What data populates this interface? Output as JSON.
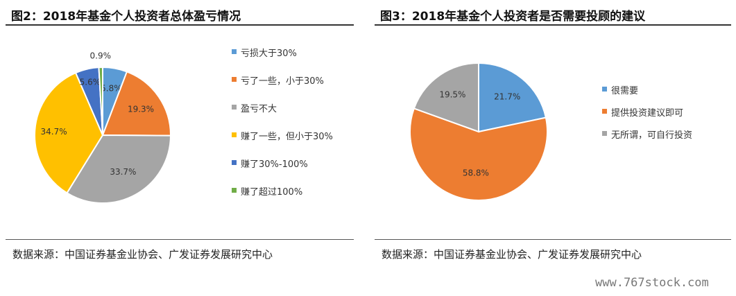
{
  "charts": [
    {
      "title": "图2：2018年基金个人投资者总体盈亏情况",
      "source": "数据来源：中国证券基金业协会、广发证券发展研究中心"
    },
    {
      "title": "图3：2018年基金个人投资者是否需要投顾的建议",
      "source": "数据来源：中国证券基金业协会、广发证券发展研究中心"
    }
  ],
  "chart_data": [
    {
      "type": "pie",
      "title": "图2：2018年基金个人投资者总体盈亏情况",
      "legend_position": "right",
      "slices": [
        {
          "label": "亏损大于30%",
          "value": 5.8,
          "value_label": "5.8%",
          "color": "#5B9BD5"
        },
        {
          "label": "亏了一些，小于30%",
          "value": 19.3,
          "value_label": "19.3%",
          "color": "#ED7D31"
        },
        {
          "label": "盈亏不大",
          "value": 33.7,
          "value_label": "33.7%",
          "color": "#A5A5A5"
        },
        {
          "label": "赚了一些，但小于30%",
          "value": 34.7,
          "value_label": "34.7%",
          "color": "#FFC000"
        },
        {
          "label": "赚了30%-100%",
          "value": 5.6,
          "value_label": "5.6%",
          "color": "#4472C4"
        },
        {
          "label": "赚了超过100%",
          "value": 0.9,
          "value_label": "0.9%",
          "color": "#70AD47"
        }
      ]
    },
    {
      "type": "pie",
      "title": "图3：2018年基金个人投资者是否需要投顾的建议",
      "legend_position": "right",
      "slices": [
        {
          "label": "很需要",
          "value": 21.7,
          "value_label": "21.7%",
          "color": "#5B9BD5"
        },
        {
          "label": "提供投资建议即可",
          "value": 58.8,
          "value_label": "58.8%",
          "color": "#ED7D31"
        },
        {
          "label": "无所谓，可自行投资",
          "value": 19.5,
          "value_label": "19.5%",
          "color": "#A5A5A5"
        }
      ]
    }
  ],
  "watermark": "www.767stock.com"
}
